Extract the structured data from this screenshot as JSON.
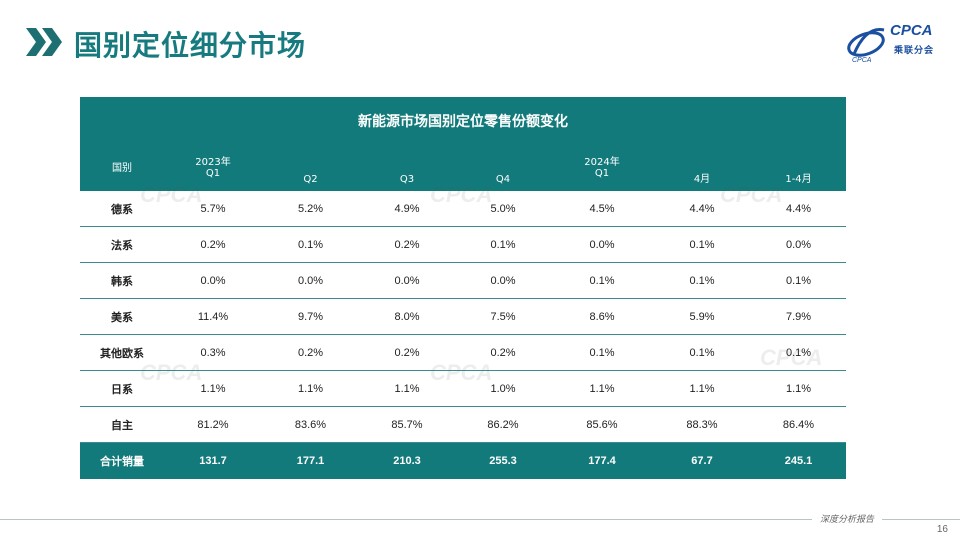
{
  "header": {
    "title": "国别定位细分市场",
    "logo_text": "CPCA",
    "logo_sub": "乘联分会"
  },
  "table": {
    "caption": "新能源市场国别定位零售份额变化",
    "columns": [
      {
        "line1": "国别",
        "line2": ""
      },
      {
        "line1": "2023年",
        "line2": "Q1"
      },
      {
        "line1": "",
        "line2": "Q2"
      },
      {
        "line1": "",
        "line2": "Q3"
      },
      {
        "line1": "",
        "line2": "Q4"
      },
      {
        "line1": "2024年",
        "line2": "Q1"
      },
      {
        "line1": "",
        "line2": "4月"
      },
      {
        "line1": "",
        "line2": "1-4月"
      }
    ],
    "rows": [
      {
        "label": "德系",
        "values": [
          "5.7%",
          "5.2%",
          "4.9%",
          "5.0%",
          "4.5%",
          "4.4%",
          "4.4%"
        ]
      },
      {
        "label": "法系",
        "values": [
          "0.2%",
          "0.1%",
          "0.2%",
          "0.1%",
          "0.0%",
          "0.1%",
          "0.0%"
        ]
      },
      {
        "label": "韩系",
        "values": [
          "0.0%",
          "0.0%",
          "0.0%",
          "0.0%",
          "0.1%",
          "0.1%",
          "0.1%"
        ]
      },
      {
        "label": "美系",
        "values": [
          "11.4%",
          "9.7%",
          "8.0%",
          "7.5%",
          "8.6%",
          "5.9%",
          "7.9%"
        ]
      },
      {
        "label": "其他欧系",
        "values": [
          "0.3%",
          "0.2%",
          "0.2%",
          "0.2%",
          "0.1%",
          "0.1%",
          "0.1%"
        ]
      },
      {
        "label": "日系",
        "values": [
          "1.1%",
          "1.1%",
          "1.1%",
          "1.0%",
          "1.1%",
          "1.1%",
          "1.1%"
        ]
      },
      {
        "label": "自主",
        "values": [
          "81.2%",
          "83.6%",
          "85.7%",
          "86.2%",
          "85.6%",
          "88.3%",
          "86.4%"
        ]
      }
    ],
    "total": {
      "label": "合计销量",
      "values": [
        "131.7",
        "177.1",
        "210.3",
        "255.3",
        "177.4",
        "67.7",
        "245.1"
      ]
    }
  },
  "footer": {
    "tagline": "深度分析报告",
    "page_number": "16"
  },
  "colors": {
    "accent": "#137a7b",
    "title": "#167a7e",
    "logo": "#1b4fa0"
  }
}
